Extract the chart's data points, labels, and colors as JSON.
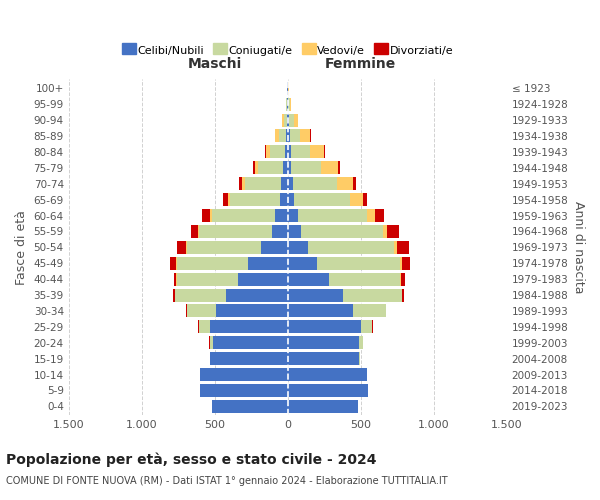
{
  "age_groups": [
    "0-4",
    "5-9",
    "10-14",
    "15-19",
    "20-24",
    "25-29",
    "30-34",
    "35-39",
    "40-44",
    "45-49",
    "50-54",
    "55-59",
    "60-64",
    "65-69",
    "70-74",
    "75-79",
    "80-84",
    "85-89",
    "90-94",
    "95-99",
    "100+"
  ],
  "birth_years": [
    "2019-2023",
    "2014-2018",
    "2009-2013",
    "2004-2008",
    "1999-2003",
    "1994-1998",
    "1989-1993",
    "1984-1988",
    "1979-1983",
    "1974-1978",
    "1969-1973",
    "1964-1968",
    "1959-1963",
    "1954-1958",
    "1949-1953",
    "1944-1948",
    "1939-1943",
    "1934-1938",
    "1929-1933",
    "1924-1928",
    "≤ 1923"
  ],
  "male": {
    "celibe": [
      520,
      600,
      600,
      530,
      510,
      530,
      490,
      420,
      340,
      270,
      180,
      110,
      90,
      55,
      45,
      30,
      20,
      12,
      8,
      4,
      2
    ],
    "coniugato": [
      0,
      1,
      2,
      5,
      25,
      80,
      200,
      350,
      420,
      490,
      510,
      500,
      430,
      340,
      250,
      170,
      100,
      50,
      20,
      5,
      2
    ],
    "vedovo": [
      0,
      0,
      0,
      0,
      0,
      0,
      0,
      1,
      2,
      3,
      5,
      5,
      10,
      15,
      20,
      25,
      30,
      25,
      10,
      2,
      0
    ],
    "divorziato": [
      0,
      0,
      0,
      0,
      1,
      2,
      5,
      15,
      20,
      40,
      60,
      50,
      60,
      30,
      20,
      10,
      5,
      2,
      1,
      0,
      0
    ]
  },
  "female": {
    "nubile": [
      480,
      550,
      540,
      490,
      490,
      500,
      450,
      380,
      280,
      200,
      140,
      90,
      70,
      45,
      35,
      25,
      20,
      15,
      10,
      5,
      2
    ],
    "coniugata": [
      0,
      1,
      2,
      5,
      25,
      80,
      220,
      400,
      490,
      570,
      590,
      560,
      470,
      380,
      300,
      200,
      130,
      70,
      30,
      8,
      3
    ],
    "vedova": [
      0,
      0,
      0,
      0,
      0,
      0,
      1,
      2,
      5,
      10,
      20,
      30,
      60,
      90,
      110,
      120,
      100,
      70,
      30,
      8,
      2
    ],
    "divorziata": [
      0,
      0,
      0,
      0,
      1,
      2,
      5,
      15,
      30,
      55,
      80,
      80,
      60,
      30,
      20,
      10,
      5,
      3,
      2,
      0,
      0
    ]
  },
  "colors": {
    "celibe_nubile": "#4472C4",
    "coniugato_a": "#C8D9A0",
    "vedovo_a": "#FFCC66",
    "divorziato_a": "#CC0000"
  },
  "title": "Popolazione per età, sesso e stato civile - 2024",
  "subtitle": "COMUNE DI FONTE NUOVA (RM) - Dati ISTAT 1° gennaio 2024 - Elaborazione TUTTITALIA.IT",
  "xlabel_left": "Maschi",
  "xlabel_right": "Femmine",
  "ylabel_left": "Fasce di età",
  "ylabel_right": "Anni di nascita",
  "xlim": 1500,
  "xticks": [
    -1500,
    -1000,
    -500,
    0,
    500,
    1000,
    1500
  ],
  "xticklabels": [
    "1.500",
    "1.000",
    "500",
    "0",
    "500",
    "1.000",
    "1.500"
  ],
  "background_color": "#ffffff",
  "grid_color": "#cccccc"
}
